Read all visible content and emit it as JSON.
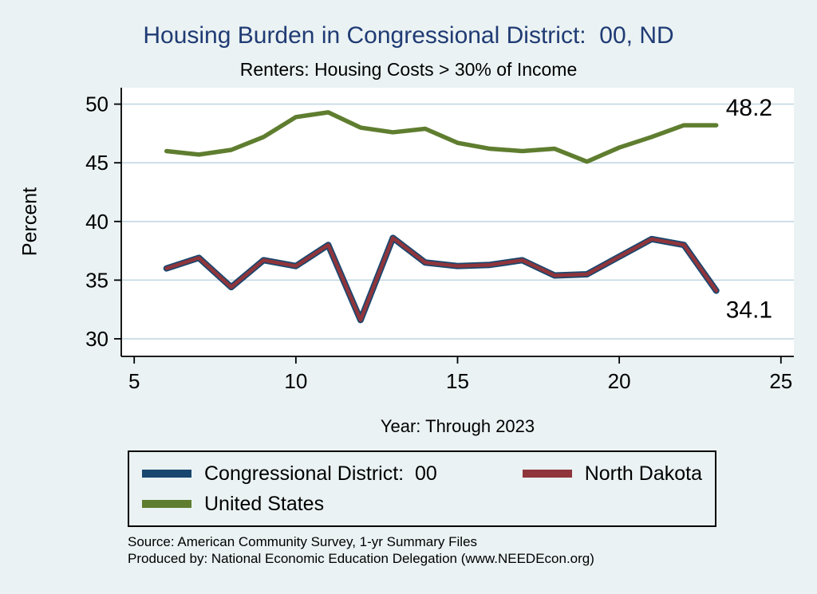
{
  "colors": {
    "page_background": "#eaf2f3",
    "plot_background": "#ffffff",
    "title": "#203b74",
    "axis": "#000000",
    "gridline": "#c3d8e3"
  },
  "chart_data": {
    "type": "line",
    "title": "Housing Burden in Congressional District:  00, ND",
    "subtitle": "Renters: Housing Costs > 30% of Income",
    "xlabel": "Year: Through 2023",
    "ylabel": "Percent",
    "x": [
      6,
      7,
      8,
      9,
      10,
      11,
      12,
      13,
      14,
      15,
      16,
      17,
      18,
      19,
      20,
      21,
      22,
      23
    ],
    "xticks": [
      5,
      10,
      15,
      20,
      25
    ],
    "yticks": [
      30,
      35,
      40,
      45,
      50
    ],
    "xlim": [
      4.6,
      25.4
    ],
    "ylim": [
      28.5,
      51.4
    ],
    "grid": true,
    "legend_position": "bottom",
    "series": [
      {
        "name": "Congressional District:  00",
        "color": "#1a476f",
        "width": 8,
        "values": [
          36.0,
          36.9,
          34.4,
          36.7,
          36.2,
          38.0,
          31.6,
          38.6,
          36.5,
          36.2,
          36.3,
          36.7,
          35.4,
          35.5,
          37.0,
          38.5,
          38.0,
          34.1
        ]
      },
      {
        "name": "North Dakota",
        "color": "#90353b",
        "width": 4.5,
        "values": [
          36.0,
          36.9,
          34.4,
          36.7,
          36.2,
          38.0,
          31.6,
          38.6,
          36.5,
          36.2,
          36.3,
          36.7,
          35.4,
          35.5,
          37.0,
          38.5,
          38.0,
          34.1
        ],
        "end_label": "34.1",
        "end_label_position": "below"
      },
      {
        "name": "United States",
        "color": "#5f7d2f",
        "width": 5.5,
        "values": [
          46.0,
          45.7,
          46.1,
          47.2,
          48.9,
          49.3,
          48.0,
          47.6,
          47.9,
          46.7,
          46.2,
          46.0,
          46.2,
          45.1,
          46.3,
          47.2,
          48.2,
          48.2
        ],
        "end_label": "48.2",
        "end_label_position": "above"
      }
    ]
  },
  "legend": {
    "items": [
      {
        "label": "Congressional District:  00",
        "color": "#1a476f"
      },
      {
        "label": "North Dakota",
        "color": "#90353b"
      },
      {
        "label": "United States",
        "color": "#5f7d2f"
      }
    ]
  },
  "footer": {
    "source": "Source: American Community Survey, 1-yr Summary Files",
    "produced_by": "Produced by: National Economic Education Delegation (www.NEEDEcon.org)"
  }
}
